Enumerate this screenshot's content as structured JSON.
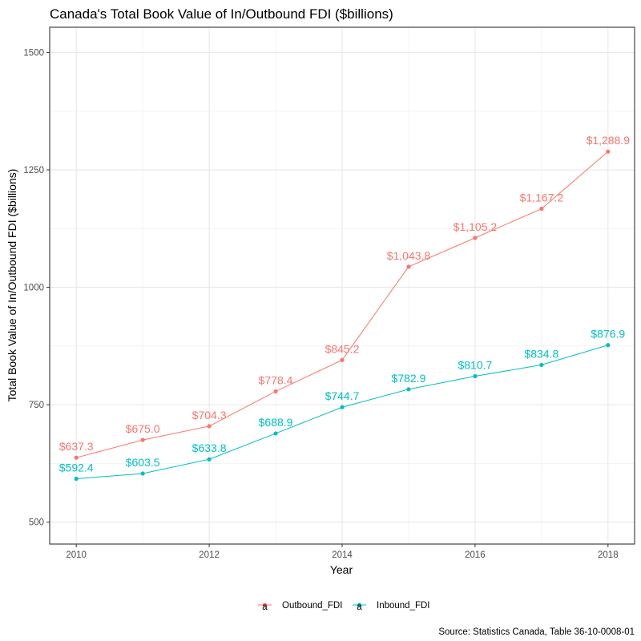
{
  "chart_data": {
    "type": "line",
    "title": "Canada's Total Book Value of In/Outbound FDI ($billions)",
    "xlabel": "Year",
    "ylabel": "Total Book Value of In/Outbound FDI ($billions)",
    "caption": "Source: Statistics Canada, Table 36-10-0008-01",
    "x": [
      2010,
      2011,
      2012,
      2013,
      2014,
      2015,
      2016,
      2017,
      2018
    ],
    "xticks": [
      2010,
      2012,
      2014,
      2016,
      2018
    ],
    "yticks": [
      500,
      750,
      1000,
      1250,
      1500
    ],
    "xlim": [
      2009.6,
      2018.4
    ],
    "ylim": [
      453.4,
      1553.6
    ],
    "grid": true,
    "legend_position": "bottom",
    "legend_key_glyph": "a",
    "series": [
      {
        "name": "Outbound_FDI",
        "color": "#F8766D",
        "values": [
          637.3,
          675.0,
          704.3,
          778.4,
          845.2,
          1043.8,
          1105.2,
          1167.2,
          1288.9
        ],
        "labels": [
          "$637.3",
          "$675.0",
          "$704.3",
          "$778.4",
          "$845.2",
          "$1,043.8",
          "$1,105.2",
          "$1,167.2",
          "$1,288.9"
        ]
      },
      {
        "name": "Inbound_FDI",
        "color": "#00BFC4",
        "values": [
          592.4,
          603.5,
          633.8,
          688.9,
          744.7,
          782.9,
          810.7,
          834.8,
          876.9
        ],
        "labels": [
          "$592.4",
          "$603.5",
          "$633.8",
          "$688.9",
          "$744.7",
          "$782.9",
          "$810.7",
          "$834.8",
          "$876.9"
        ]
      }
    ]
  }
}
